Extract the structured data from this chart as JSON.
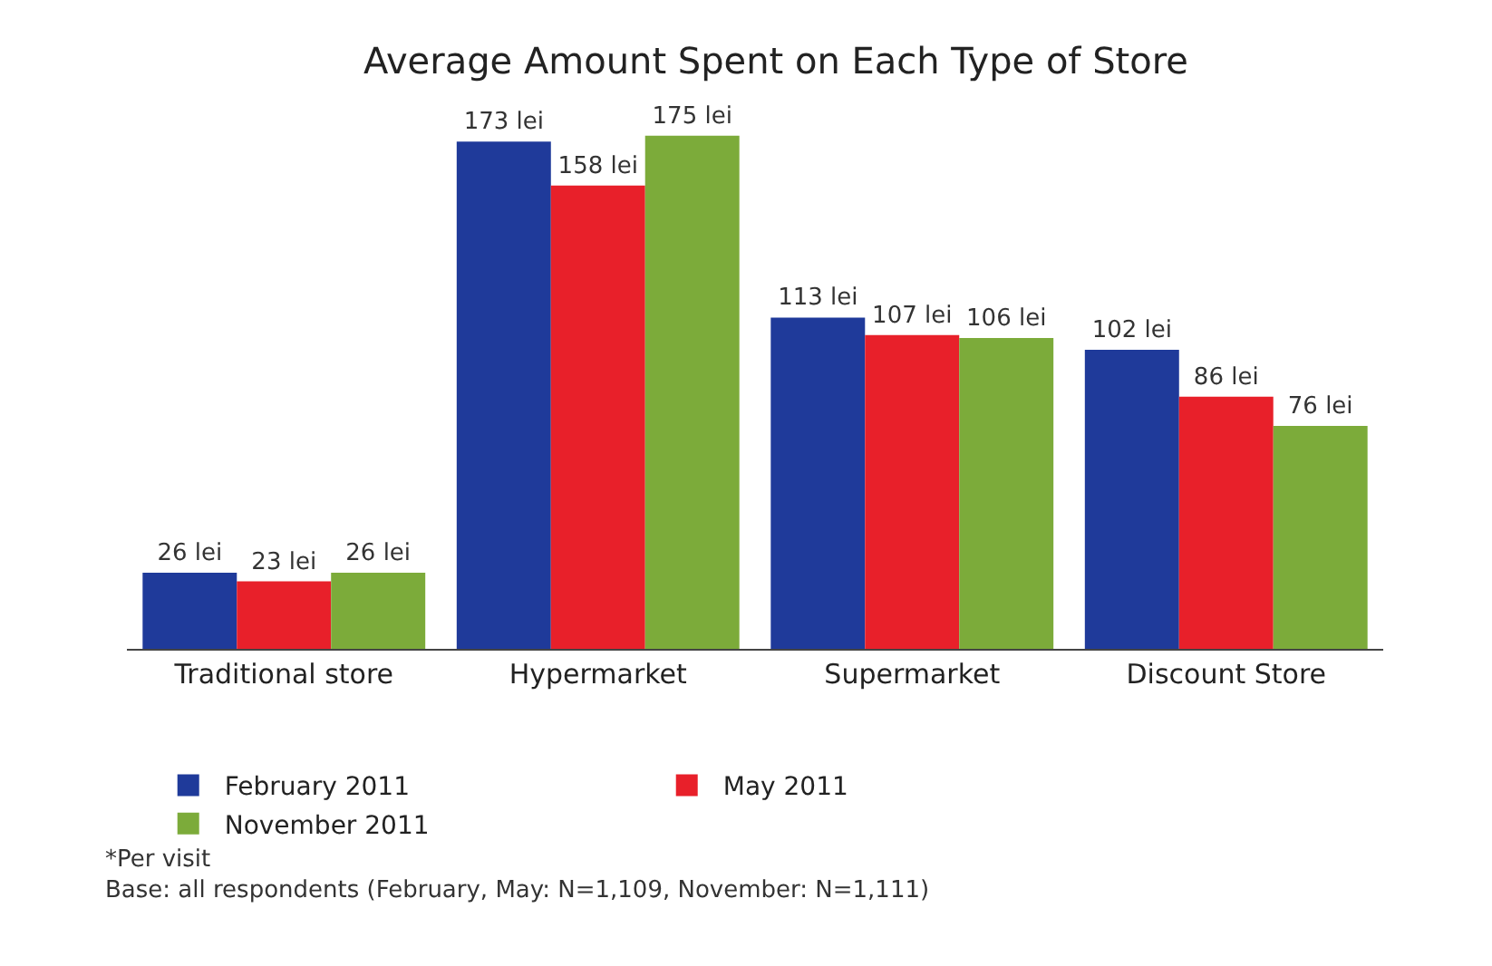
{
  "chart_data": {
    "type": "bar",
    "title": "Average Amount Spent on Each Type of Store",
    "categories": [
      "Traditional store",
      "Hypermarket",
      "Supermarket",
      "Discount Store"
    ],
    "series": [
      {
        "name": "February 2011",
        "color": "#1f3a9a",
        "values": [
          26,
          173,
          113,
          102
        ],
        "value_labels": [
          "26 lei",
          "173 lei",
          "113 lei",
          "102 lei"
        ]
      },
      {
        "name": "May 2011",
        "color": "#e8202a",
        "values": [
          23,
          158,
          107,
          86
        ],
        "value_labels": [
          "23 lei",
          "158 lei",
          "107 lei",
          "86 lei"
        ]
      },
      {
        "name": "November 2011",
        "color": "#7cab3a",
        "values": [
          26,
          175,
          106,
          76
        ],
        "value_labels": [
          "26 lei",
          "175 lei",
          "106 lei",
          "76 lei"
        ]
      }
    ],
    "legend": "bottom",
    "grid": false,
    "annotations": [
      "*Per visit",
      "Base: all respondents (February, May: N=1,109, November: N=1,111)"
    ]
  }
}
